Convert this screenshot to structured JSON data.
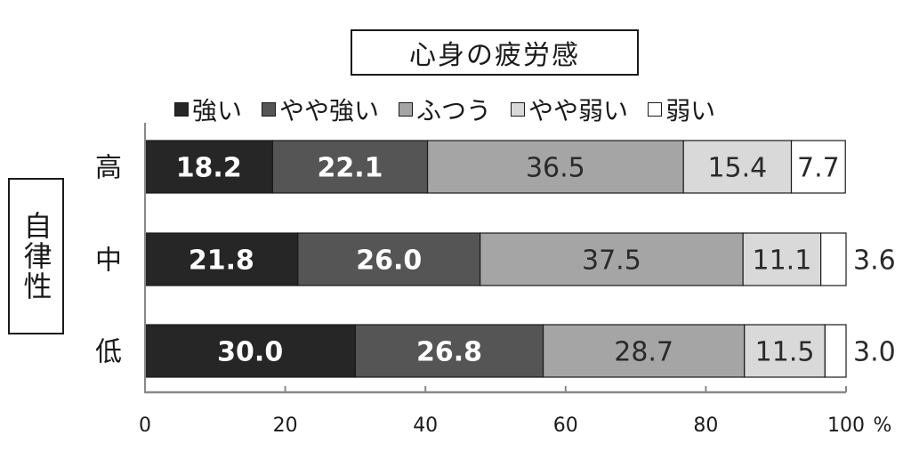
{
  "chart_data": {
    "type": "bar",
    "orientation": "horizontal",
    "stacked": true,
    "title": "心身の疲労感",
    "ylabel": "自律性",
    "categories": [
      "高",
      "中",
      "低"
    ],
    "series": [
      {
        "name": "強い",
        "color": "#262626",
        "values": [
          18.2,
          21.8,
          30.0
        ],
        "labels": [
          "18.2",
          "21.8",
          "30.0"
        ]
      },
      {
        "name": "やや強い",
        "color": "#555555",
        "values": [
          22.1,
          26.0,
          26.8
        ],
        "labels": [
          "22.1",
          "26.0",
          "26.8"
        ]
      },
      {
        "name": "ふつう",
        "color": "#a5a5a5",
        "values": [
          36.5,
          37.5,
          28.7
        ],
        "labels": [
          "36.5",
          "37.5",
          "28.7"
        ]
      },
      {
        "name": "やや弱い",
        "color": "#d9d9d9",
        "values": [
          15.4,
          11.1,
          11.5
        ],
        "labels": [
          "15.4",
          "11.1",
          "11.5"
        ]
      },
      {
        "name": "弱い",
        "color": "#ffffff",
        "values": [
          7.7,
          3.6,
          3.0
        ],
        "labels": [
          "7.7",
          "3.6",
          "3.0"
        ]
      }
    ],
    "xlim": [
      0,
      100
    ],
    "xticks": [
      "0",
      "20",
      "40",
      "60",
      "80",
      "100"
    ],
    "xunit": "%",
    "legend_position": "top",
    "grid": false
  }
}
